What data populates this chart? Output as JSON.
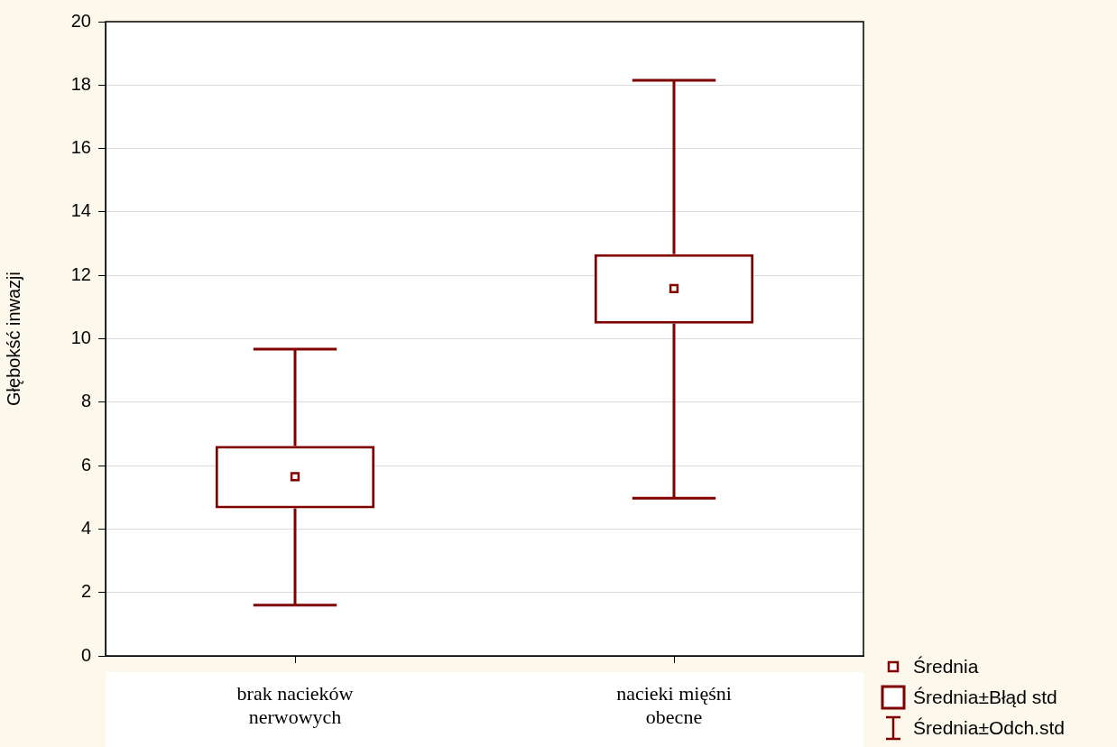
{
  "chart_data": {
    "type": "box",
    "ylabel": "Głębokść inwazji",
    "categories": [
      "brak nacieków nerwowych",
      "nacieki mięśni obecne"
    ],
    "boxes": [
      {
        "low": 1.6,
        "q1": 4.65,
        "mean": 5.65,
        "q3": 6.62,
        "high": 9.67
      },
      {
        "low": 4.97,
        "q1": 10.48,
        "mean": 11.58,
        "q3": 12.67,
        "high": 18.15
      }
    ],
    "color": "#800000",
    "ylim": [
      0,
      20
    ],
    "yticks": [
      0,
      2,
      4,
      6,
      8,
      10,
      12,
      14,
      16,
      18,
      20
    ],
    "grid": "y",
    "marker": "square",
    "annotations": [
      "Średnia",
      "Średnia±Błąd std",
      "Średnia±Odch.std"
    ]
  }
}
